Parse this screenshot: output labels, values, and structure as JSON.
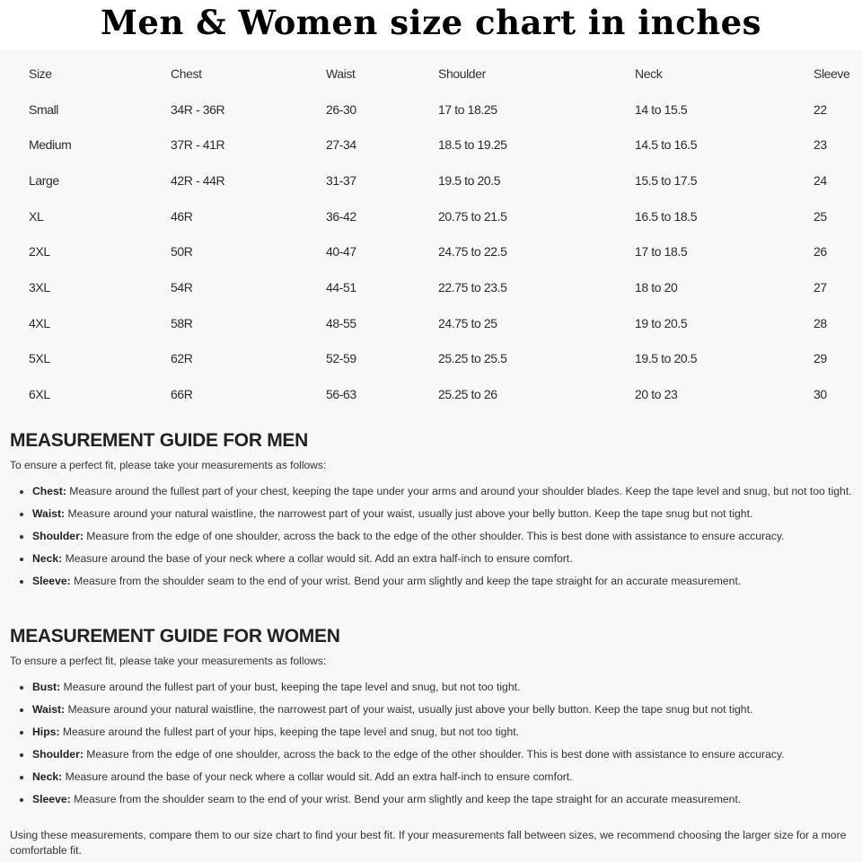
{
  "title": "Men & Women size chart in inches",
  "table": {
    "headers": [
      "Size",
      "Chest",
      "Waist",
      "Shoulder",
      "Neck",
      "Sleeve"
    ],
    "rows": [
      [
        "Small",
        "34R - 36R",
        "26-30",
        "17 to 18.25",
        "14 to 15.5",
        "22"
      ],
      [
        "Medium",
        "37R - 41R",
        "27-34",
        "18.5 to 19.25",
        "14.5 to 16.5",
        "23"
      ],
      [
        "Large",
        "42R - 44R",
        "31-37",
        "19.5 to 20.5",
        "15.5 to 17.5",
        "24"
      ],
      [
        "XL",
        "46R",
        "36-42",
        "20.75 to 21.5",
        "16.5 to 18.5",
        "25"
      ],
      [
        "2XL",
        "50R",
        "40-47",
        "24.75 to 22.5",
        "17 to 18.5",
        "26"
      ],
      [
        "3XL",
        "54R",
        "44-51",
        "22.75 to 23.5",
        "18 to 20",
        "27"
      ],
      [
        "4XL",
        "58R",
        "48-55",
        "24.75 to 25",
        "19 to 20.5",
        "28"
      ],
      [
        "5XL",
        "62R",
        "52-59",
        "25.25 to 25.5",
        "19.5 to 20.5",
        "29"
      ],
      [
        "6XL",
        "66R",
        "56-63",
        "25.25 to 26",
        "20 to 23",
        "30"
      ]
    ]
  },
  "men": {
    "heading": "MEASUREMENT GUIDE FOR MEN",
    "intro": "To ensure a perfect fit, please take your measurements as follows:",
    "items": [
      {
        "term": "Chest:",
        "text": " Measure around the fullest part of your chest, keeping the tape under your arms and around your shoulder blades. Keep the tape level and snug, but not too tight."
      },
      {
        "term": "Waist:",
        "text": " Measure around your natural waistline, the narrowest part of your waist, usually just above your belly button. Keep the tape snug but not tight."
      },
      {
        "term": "Shoulder:",
        "text": " Measure from the edge of one shoulder, across the back to the edge of the other shoulder. This is best done with assistance to ensure accuracy."
      },
      {
        "term": "Neck:",
        "text": " Measure around the base of your neck where a collar would sit. Add an extra half-inch to ensure comfort."
      },
      {
        "term": "Sleeve:",
        "text": " Measure from the shoulder seam to the end of your wrist. Bend your arm slightly and keep the tape straight for an accurate measurement."
      }
    ]
  },
  "women": {
    "heading": "MEASUREMENT GUIDE FOR WOMEN",
    "intro": "To ensure a perfect fit, please take your measurements as follows:",
    "items": [
      {
        "term": "Bust:",
        "text": " Measure around the fullest part of your bust, keeping the tape level and snug, but not too tight."
      },
      {
        "term": "Waist:",
        "text": " Measure around your natural waistline, the narrowest part of your waist, usually just above your belly button. Keep the tape snug but not tight."
      },
      {
        "term": "Hips:",
        "text": " Measure around the fullest part of your hips, keeping the tape level and snug, but not too tight."
      },
      {
        "term": "Shoulder:",
        "text": " Measure from the edge of one shoulder, across the back to the edge of the other shoulder. This is best done with assistance to ensure accuracy."
      },
      {
        "term": "Neck:",
        "text": " Measure around the base of your neck where a collar would sit. Add an extra half-inch to ensure comfort."
      },
      {
        "term": "Sleeve:",
        "text": " Measure from the shoulder seam to the end of your wrist. Bend your arm slightly and keep the tape straight for an accurate measurement."
      }
    ]
  },
  "footer": "Using these measurements, compare them to our size chart to find your best fit. If your measurements fall between sizes, we recommend choosing the larger size for a more comfortable fit."
}
